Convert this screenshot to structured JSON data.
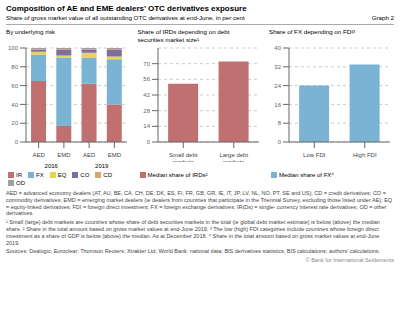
{
  "title": "Composition of AE and EME dealers’ OTC derivatives exposure",
  "subtitle": "Share of gross market value of all outstanding OTC derivatives at end-June, in per cent",
  "annotations": [
    "Graph 2",
    "AED = advanced economy dealers (AT, AU, BE, CA, CH, DE, DK, ES, FI, FR, GB, GR, IE, IT, JP, LV, NL, NO, PT, SE and US); CD = credit derivatives;\nCO = commodity derivatives; EMD = emerging market dealers (ie dealers from countries that participate in the Triennial Survey, excluding\nthose listed under AE); EQ = equity-linked derivatives; FDI = foreign direct investment; FX = foreign exchange derivatives; IR(Ds) = single-\ncurrency interest rate derivatives; OD = other derivatives.",
    "¹ Small (large) debt markets are countries whose share of debt securities markets in the total (ie global debt market estimate) is below (above)\nthe median share.   ² Share in the total amount based on gross market values at end-June 2019.   ³ The low (high) FDI categories include\ncountries whose foreign direct investment as a share of GDP is below (above) the median. As at December 2018.   ⁴ Share in the total amount\nbased on gross market values at end-June 2019.",
    "Sources: Dealogic; Euroclear; Thomson Reuters; Xtrakter Ltd; World Bank; national data; BIS derivatives statistics; BIS calculations; authors’\ncalculations.",
    "© Bank for International Settlements"
  ],
  "chart_data": [
    {
      "type": "bar",
      "title": "By underlying risk",
      "categories": [
        "AED",
        "EMD",
        "AED",
        "EMD"
      ],
      "stacked": true,
      "series": [
        {
          "name": "IR",
          "color": "#c07070",
          "values": [
            65,
            17,
            62,
            40
          ]
        },
        {
          "name": "FX",
          "color": "#7ab3d3",
          "values": [
            28,
            73,
            28,
            48
          ]
        },
        {
          "name": "EQ",
          "color": "#e8d44d",
          "values": [
            3,
            2,
            5,
            3
          ]
        },
        {
          "name": "CO",
          "color": "#7b6fa0",
          "values": [
            2,
            6,
            3,
            7
          ]
        },
        {
          "name": "CD",
          "color": "#d4a96a",
          "values": [
            1,
            1,
            1,
            1
          ]
        },
        {
          "name": "OD",
          "color": "#a0a0a0",
          "values": [
            1,
            1,
            1,
            1
          ]
        }
      ],
      "ylim": [
        0,
        100
      ],
      "yticks": [
        0,
        20,
        40,
        60,
        80,
        100
      ],
      "grid": true,
      "legend": "bottom",
      "annotations": [
        "2016",
        "2019"
      ]
    },
    {
      "type": "bar",
      "title": "Share of IRDs depending on debt\nsecurities market size¹",
      "categories": [
        "Small debt markets",
        "Large debt markets"
      ],
      "series": [
        {
          "name": "Median share of IRDs²",
          "color": "#c07070",
          "values": [
            52,
            72
          ]
        }
      ],
      "ylim": [
        0,
        84
      ],
      "yticks": [
        0,
        14,
        28,
        42,
        56,
        70
      ],
      "grid": true,
      "legend": "bottom"
    },
    {
      "type": "bar",
      "title": "Share of FX depending on FDI³",
      "categories": [
        "Low FDI",
        "High FDI"
      ],
      "series": [
        {
          "name": "Median share of FX⁴",
          "color": "#7ab3d3",
          "values": [
            24,
            33
          ]
        }
      ],
      "ylim": [
        0,
        40
      ],
      "yticks": [
        0,
        8,
        16,
        24,
        32,
        40
      ],
      "grid": true,
      "legend": "bottom"
    }
  ]
}
